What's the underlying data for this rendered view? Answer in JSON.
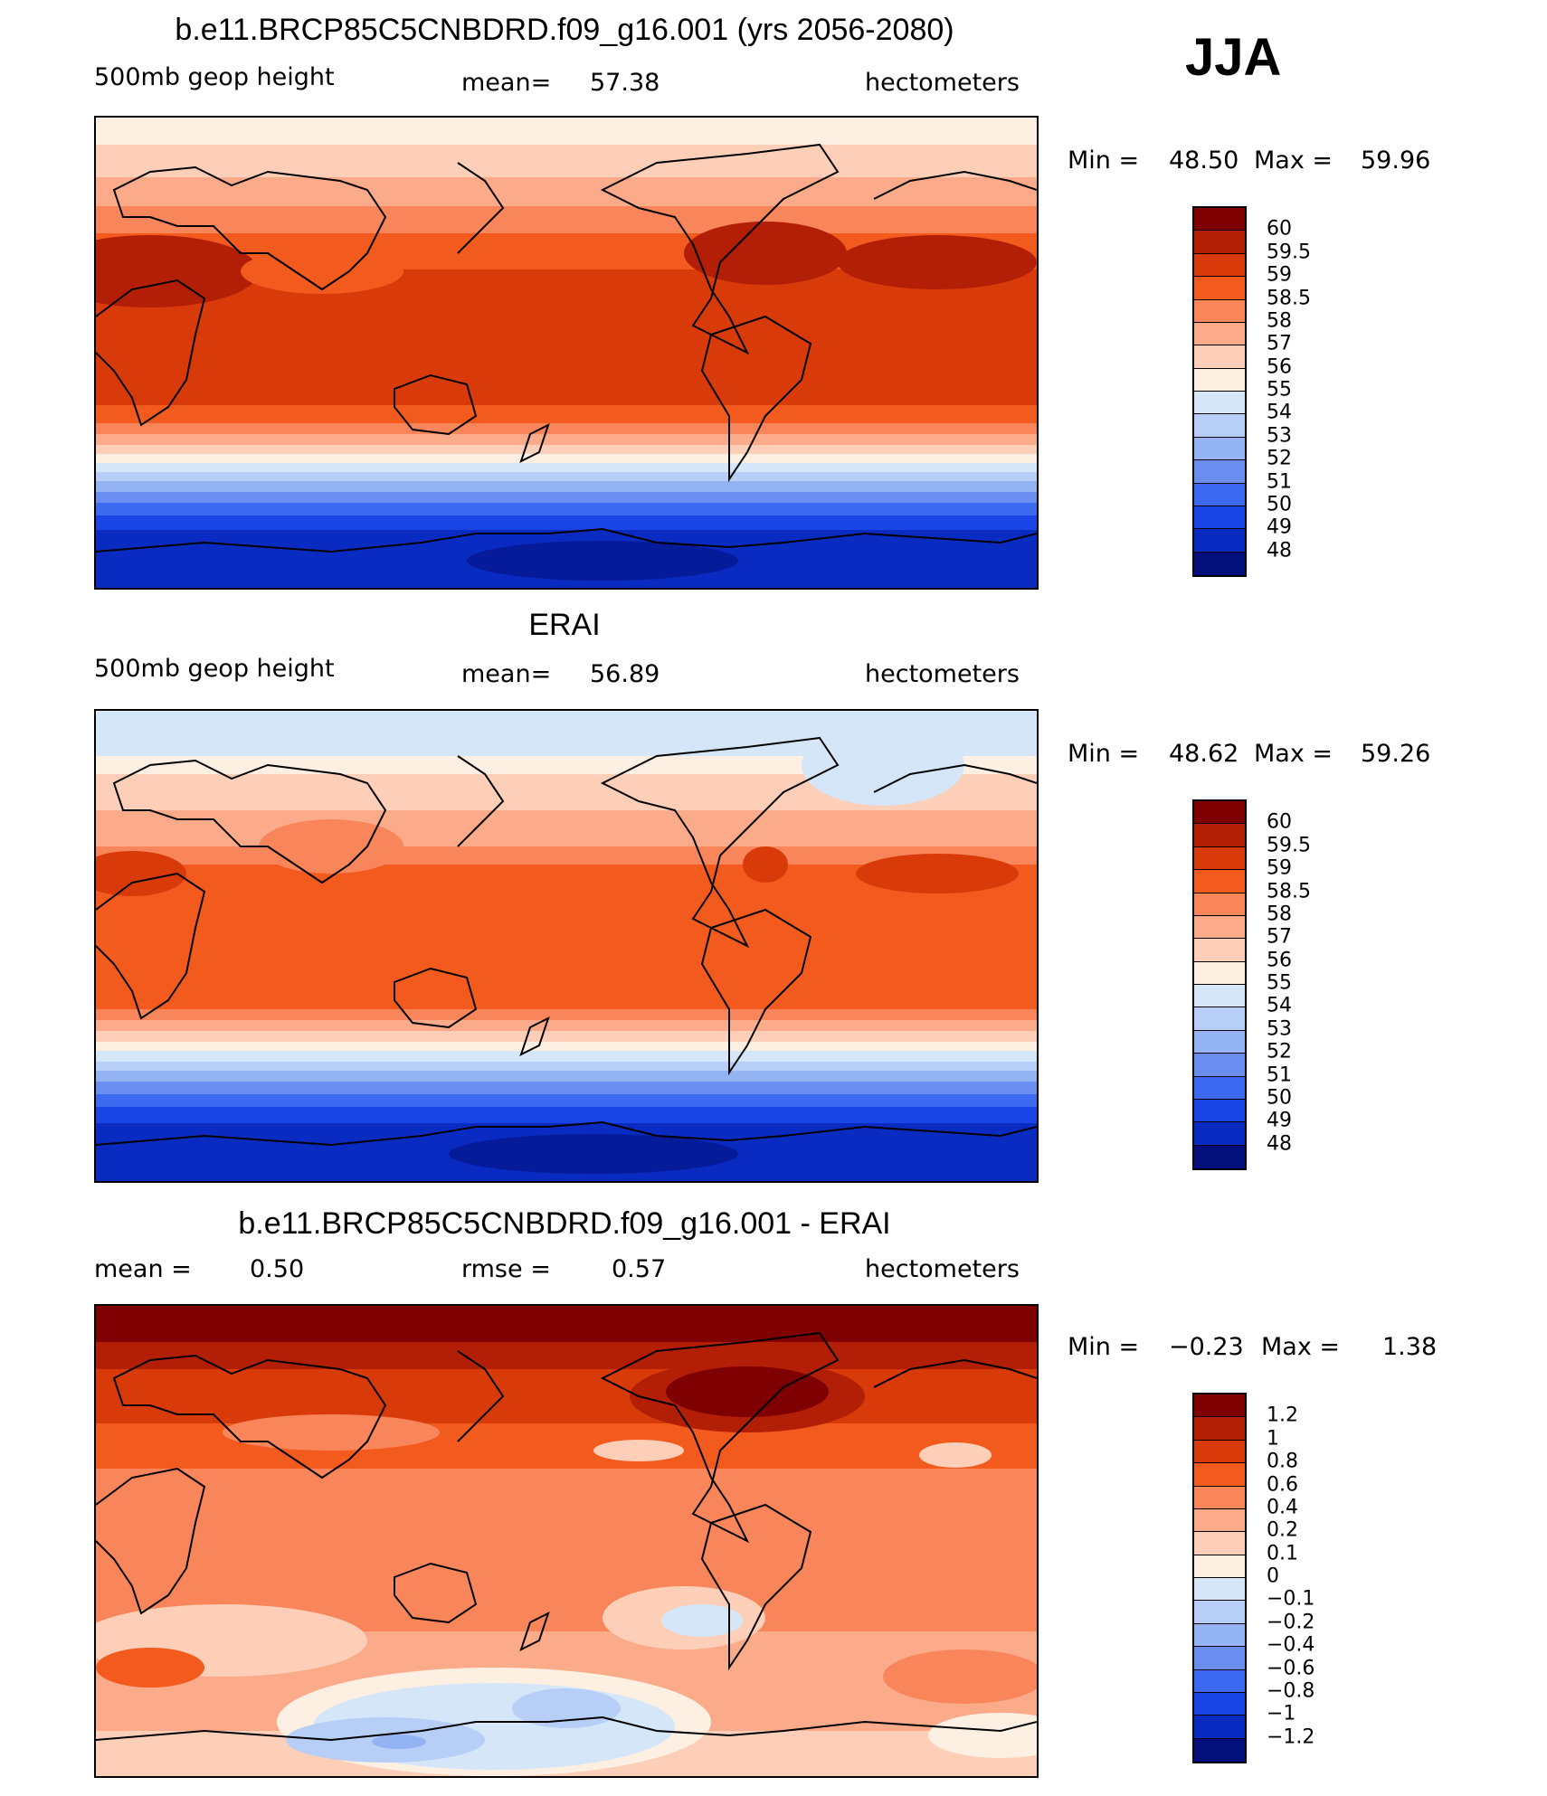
{
  "season": "JJA",
  "panels": [
    {
      "title": "b.e11.BRCP85C5CNBDRD.f09_g16.001 (yrs 2056-2080)",
      "left_label": "500mb geop height",
      "mid_label": "mean=",
      "mid_value": "57.38",
      "right_label": "hectometers",
      "min_label": "Min =",
      "min_value": "48.50",
      "max_label": "Max =",
      "max_value": "59.96",
      "colorbar_labels": [
        "60",
        "59.5",
        "59",
        "58.5",
        "58",
        "57",
        "56",
        "55",
        "54",
        "53",
        "52",
        "51",
        "50",
        "49",
        "48"
      ]
    },
    {
      "title": "ERAI",
      "left_label": "500mb geop height",
      "mid_label": "mean=",
      "mid_value": "56.89",
      "right_label": "hectometers",
      "min_label": "Min =",
      "min_value": "48.62",
      "max_label": "Max =",
      "max_value": "59.26",
      "colorbar_labels": [
        "60",
        "59.5",
        "59",
        "58.5",
        "58",
        "57",
        "56",
        "55",
        "54",
        "53",
        "52",
        "51",
        "50",
        "49",
        "48"
      ]
    },
    {
      "title": "b.e11.BRCP85C5CNBDRD.f09_g16.001 - ERAI",
      "left_label": "mean =",
      "left_value": "0.50",
      "mid_label": "rmse =",
      "mid_value": "0.57",
      "right_label": "hectometers",
      "min_label": "Min =",
      "min_value": "−0.23",
      "max_label": "Max =",
      "max_value": "1.38",
      "colorbar_labels": [
        "1.2",
        "1",
        "0.8",
        "0.6",
        "0.4",
        "0.2",
        "0.1",
        "0",
        "−0.1",
        "−0.2",
        "−0.4",
        "−0.6",
        "−0.8",
        "−1",
        "−1.2"
      ]
    }
  ],
  "colors": {
    "scale": [
      "#7f0000",
      "#b31e06",
      "#d93a0a",
      "#f25a1e",
      "#f8865a",
      "#fcab8a",
      "#fdcfb8",
      "#fdf0e2",
      "#d5e6f8",
      "#b7cff6",
      "#93b3f3",
      "#6a8ff0",
      "#3d6af0",
      "#1a45e6",
      "#0a2bc2",
      "#030f7a"
    ],
    "coastline": "#000000"
  },
  "chart_data": [
    {
      "type": "map",
      "projection": "cylindrical-equidistant, Pacific-centered",
      "field": "500mb geop height",
      "units": "hectometers",
      "season": "JJA",
      "mean": 57.38,
      "min": 48.5,
      "max": 59.96,
      "contour_levels": [
        48,
        49,
        50,
        51,
        52,
        53,
        54,
        55,
        56,
        57,
        58,
        58.5,
        59,
        59.5,
        60
      ]
    },
    {
      "type": "map",
      "projection": "cylindrical-equidistant, Pacific-centered",
      "field": "500mb geop height",
      "units": "hectometers",
      "season": "JJA",
      "mean": 56.89,
      "min": 48.62,
      "max": 59.26,
      "contour_levels": [
        48,
        49,
        50,
        51,
        52,
        53,
        54,
        55,
        56,
        57,
        58,
        58.5,
        59,
        59.5,
        60
      ]
    },
    {
      "type": "map",
      "projection": "cylindrical-equidistant, Pacific-centered",
      "field": "difference",
      "units": "hectometers",
      "season": "JJA",
      "mean": 0.5,
      "rmse": 0.57,
      "min": -0.23,
      "max": 1.38,
      "contour_levels": [
        -1.2,
        -1,
        -0.8,
        -0.6,
        -0.4,
        -0.2,
        -0.1,
        0,
        0.1,
        0.2,
        0.4,
        0.6,
        0.8,
        1,
        1.2
      ]
    }
  ]
}
